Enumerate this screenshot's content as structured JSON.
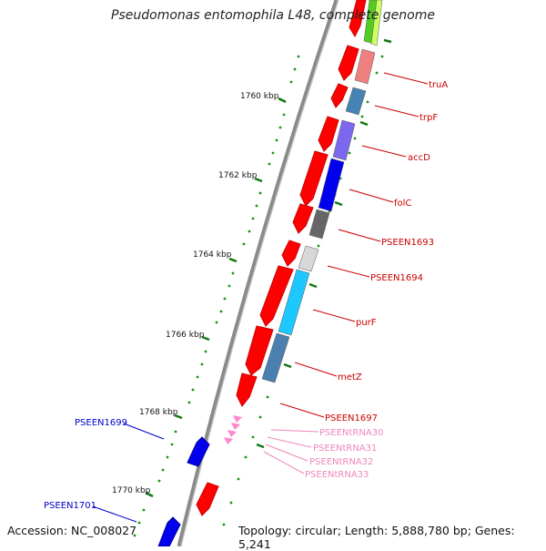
{
  "title": "Pseudomonas entomophila L48, complete genome",
  "footer": {
    "accession": "Accession: NC_008027",
    "topology": "Topology: circular; Length: 5,888,780 bp; Genes: 5,241"
  },
  "scale_labels": [
    "1760 kbp",
    "1762 kbp",
    "1764 kbp",
    "1766 kbp",
    "1768 kbp",
    "1770 kbp"
  ],
  "gene_labels": [
    {
      "text": "truA",
      "color": "#cc0000"
    },
    {
      "text": "trpF",
      "color": "#cc0000"
    },
    {
      "text": "accD",
      "color": "#cc0000"
    },
    {
      "text": "folC",
      "color": "#cc0000"
    },
    {
      "text": "PSEEN1693",
      "color": "#cc0000"
    },
    {
      "text": "PSEEN1694",
      "color": "#cc0000"
    },
    {
      "text": "purF",
      "color": "#cc0000"
    },
    {
      "text": "metZ",
      "color": "#cc0000"
    },
    {
      "text": "PSEEN1697",
      "color": "#cc0000"
    },
    {
      "text": "PSEENtRNA30",
      "color": "#ee88bb"
    },
    {
      "text": "PSEENtRNA31",
      "color": "#ee88bb"
    },
    {
      "text": "PSEENtRNA32",
      "color": "#ee88bb"
    },
    {
      "text": "PSEENtRNA33",
      "color": "#ee88bb"
    },
    {
      "text": "PSEEN1699",
      "color": "#0000cc"
    },
    {
      "text": "PSEEN1701",
      "color": "#0000cc"
    }
  ],
  "colors": {
    "backbone": "#888888",
    "forward_cds": "#ff0000",
    "reverse_cds": "#0000ff",
    "trna": "#ff88cc",
    "tick": "#008800"
  }
}
